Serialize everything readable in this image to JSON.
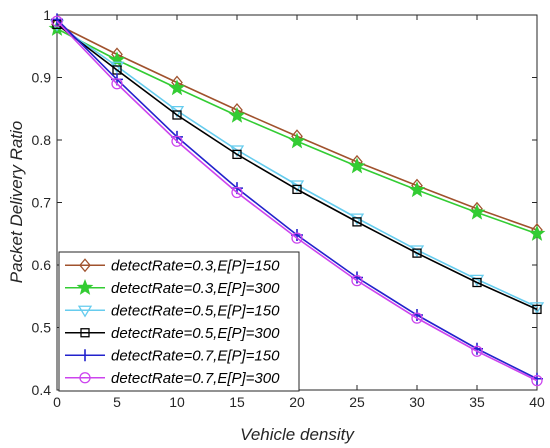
{
  "chart_data": {
    "type": "line",
    "title": "",
    "xlabel": "Vehicle density",
    "ylabel": "Packet Delivery Ratio",
    "xlim": [
      0,
      40
    ],
    "ylim": [
      0.4,
      1.0
    ],
    "x": [
      0,
      5,
      10,
      15,
      20,
      25,
      30,
      35,
      40
    ],
    "x_ticks": [
      "0",
      "5",
      "10",
      "15",
      "20",
      "25",
      "30",
      "35",
      "40"
    ],
    "y_ticks": [
      "0.4",
      "0.5",
      "0.6",
      "0.7",
      "0.8",
      "0.9",
      "1"
    ],
    "grid": false,
    "legend_position": "bottom-left",
    "series": [
      {
        "name": "detectRate=0.3,E[P]=150",
        "color": "#a0522d",
        "marker": "diamond",
        "values": [
          0.985,
          0.937,
          0.892,
          0.848,
          0.806,
          0.765,
          0.727,
          0.69,
          0.656
        ]
      },
      {
        "name": "detectRate=0.3,E[P]=300",
        "color": "#33cc33",
        "marker": "star",
        "values": [
          0.978,
          0.928,
          0.883,
          0.839,
          0.798,
          0.758,
          0.72,
          0.684,
          0.65
        ]
      },
      {
        "name": "detectRate=0.5,E[P]=150",
        "color": "#66ccee",
        "marker": "triangle-down",
        "values": [
          0.985,
          0.918,
          0.847,
          0.784,
          0.728,
          0.675,
          0.624,
          0.577,
          0.533
        ]
      },
      {
        "name": "detectRate=0.5,E[P]=300",
        "color": "#000000",
        "marker": "square",
        "values": [
          0.985,
          0.912,
          0.84,
          0.777,
          0.721,
          0.669,
          0.619,
          0.572,
          0.529
        ]
      },
      {
        "name": "detectRate=0.7,E[P]=150",
        "color": "#2222cc",
        "marker": "plus",
        "values": [
          0.993,
          0.897,
          0.805,
          0.723,
          0.648,
          0.58,
          0.52,
          0.466,
          0.418
        ]
      },
      {
        "name": "detectRate=0.7,E[P]=300",
        "color": "#cc44ee",
        "marker": "circle",
        "values": [
          0.99,
          0.89,
          0.798,
          0.716,
          0.643,
          0.575,
          0.515,
          0.462,
          0.415
        ]
      }
    ]
  }
}
